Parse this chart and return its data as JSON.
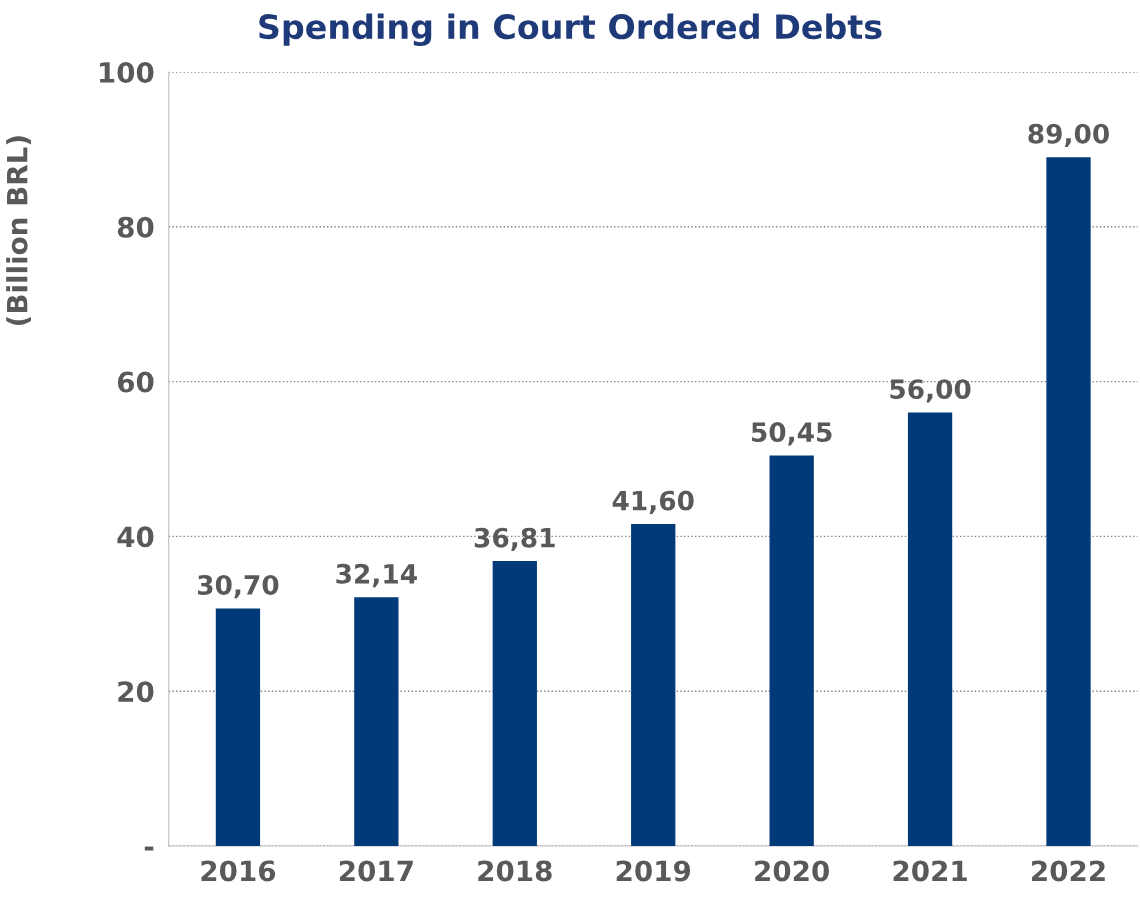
{
  "chart_data": {
    "type": "bar",
    "title": "Spending in Court Ordered Debts",
    "ylabel": "(Billion BRL)",
    "categories": [
      "2016",
      "2017",
      "2018",
      "2019",
      "2020",
      "2021",
      "2022"
    ],
    "values": [
      30.7,
      32.14,
      36.81,
      41.6,
      50.45,
      56.0,
      89.0
    ],
    "value_labels": [
      "30,70",
      "32,14",
      "36,81",
      "41,60",
      "50,45",
      "56,00",
      "89,00"
    ],
    "color": "#003a78",
    "ylim": [
      0,
      100
    ],
    "yticks": [
      {
        "value": 0,
        "label": "-"
      },
      20,
      40,
      60,
      80,
      100
    ],
    "grid": "y"
  }
}
